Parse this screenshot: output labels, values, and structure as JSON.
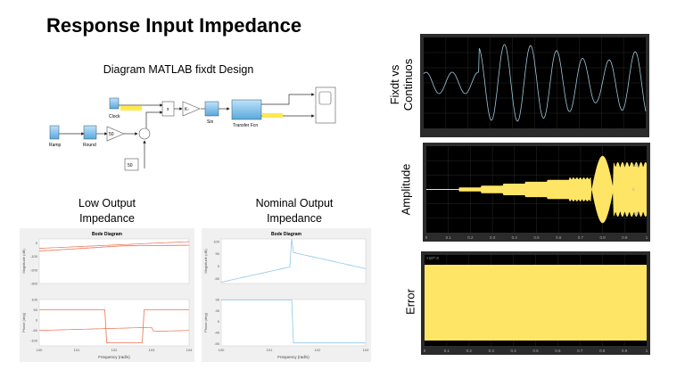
{
  "slide": {
    "title": "Response Input Impedance",
    "diagram_title": "Diagram MATLAB fixdt Design",
    "low_caption": [
      "Low Output",
      "Impedance"
    ],
    "nominal_caption": [
      "Nominal Output",
      "Impedance"
    ],
    "scope_labels": {
      "top": [
        "Fixdt vs",
        "Continuos"
      ],
      "middle": "Amplitude",
      "bottom": "Error"
    }
  },
  "simulink": {
    "blocks": {
      "clock": "Clock",
      "ramp": "Ramp",
      "round": "Round",
      "gain50": "50",
      "const50": "50",
      "product": "x",
      "gainK": "K-",
      "sin": "Sin",
      "tf": "Transfer Fcn"
    }
  },
  "colors": {
    "bode_low": "#f07050",
    "bode_nominal": "#8ec8ec",
    "scope_bg": "#000000",
    "scope_yellow": "#ffe566",
    "scope_line": "#9fc8d8",
    "block_blue": "#7fbfe8"
  },
  "chart_data": [
    {
      "type": "line",
      "title": "Bode Diagram",
      "xlabel": "Frequency (rad/s)",
      "xscale": "log",
      "xticks": [
        "10^0",
        "10^1",
        "10^2",
        "10^3",
        "10^4"
      ],
      "magnitude": {
        "ylabel": "Magnitude (dB)",
        "yticks": [
          0,
          -100,
          -200,
          -300
        ],
        "ylim": [
          -300,
          30
        ]
      },
      "phase": {
        "ylabel": "Phase (deg)",
        "yticks": [
          100,
          50,
          0,
          -50,
          -100
        ],
        "ylim": [
          -125,
          100
        ]
      }
    },
    {
      "type": "line",
      "title": "Bode Diagram",
      "xlabel": "Frequency (rad/s)",
      "xscale": "log",
      "xticks": [
        "10^0",
        "10^1",
        "10^2",
        "10^3"
      ],
      "magnitude": {
        "ylabel": "Magnitude (dB)",
        "yticks": [
          100,
          50,
          0,
          -50
        ],
        "ylim": [
          -70,
          110
        ]
      },
      "phase": {
        "ylabel": "Phase (deg)",
        "yticks": [
          90,
          45,
          0,
          -45,
          -90
        ],
        "ylim": [
          -100,
          90
        ]
      }
    },
    {
      "type": "line",
      "xlim": [
        0,
        1
      ]
    },
    {
      "type": "area",
      "xlim": [
        0,
        1
      ],
      "yticks": [
        50,
        0,
        -50
      ],
      "xticks": [
        "0",
        "0.1",
        "0.2",
        "0.3",
        "0.4",
        "0.5",
        "0.6",
        "0.7",
        "0.8",
        "0.9",
        "1"
      ]
    },
    {
      "type": "area",
      "xlim": [
        0,
        1
      ],
      "yscale_label": "×10^-3",
      "xticks": [
        "0",
        "0.1",
        "0.2",
        "0.3",
        "0.4",
        "0.5",
        "0.6",
        "0.7",
        "0.8",
        "0.9",
        "1"
      ]
    }
  ]
}
